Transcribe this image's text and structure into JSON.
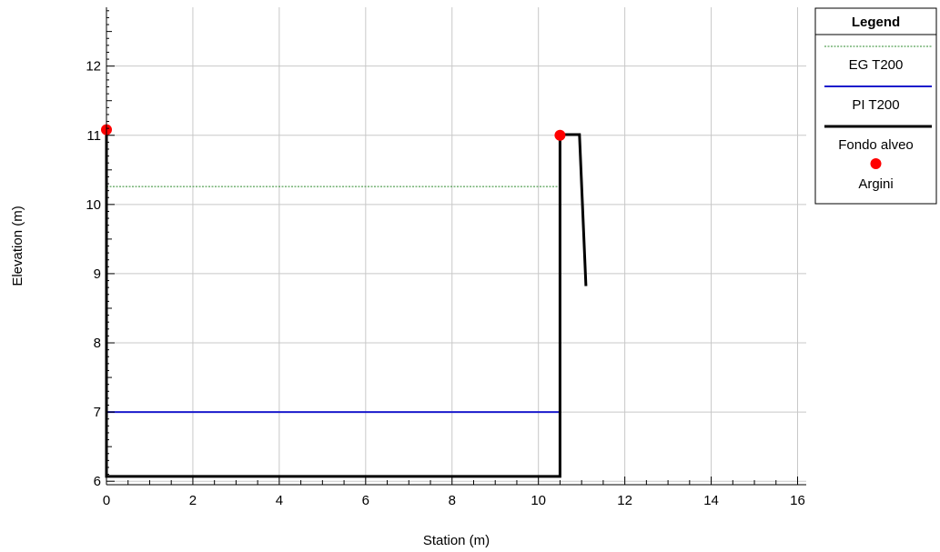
{
  "chart_data": {
    "type": "line",
    "xlabel": "Station (m)",
    "ylabel": "Elevation (m)",
    "xlim": [
      0,
      16.2
    ],
    "ylim": [
      5.95,
      12.85
    ],
    "x_ticks": [
      0,
      2,
      4,
      6,
      8,
      10,
      12,
      14,
      16
    ],
    "y_ticks": [
      6,
      7,
      8,
      9,
      10,
      11,
      12
    ],
    "grid": true,
    "legend": {
      "title": "Legend",
      "placement": "top-right outside",
      "entries": [
        "EG T200",
        "PI T200",
        "Fondo alveo",
        "Argini"
      ]
    },
    "series": [
      {
        "name": "EG T200",
        "style": "dotted",
        "color": "#2e8b2e",
        "x": [
          0,
          10.5
        ],
        "y": [
          10.26,
          10.26
        ]
      },
      {
        "name": "PI T200",
        "style": "solid",
        "color": "#1a1acc",
        "x": [
          0,
          10.5
        ],
        "y": [
          7.0,
          7.0
        ]
      },
      {
        "name": "Fondo alveo",
        "style": "solid",
        "color": "#000000",
        "x": [
          0,
          0,
          10.5,
          10.5,
          10.6,
          10.95,
          11.1
        ],
        "y": [
          11.05,
          6.07,
          6.07,
          11.0,
          11.01,
          11.01,
          8.82
        ]
      },
      {
        "name": "Argini",
        "style": "markers",
        "color": "#ff0000",
        "x": [
          0,
          10.5
        ],
        "y": [
          11.08,
          11.0
        ]
      }
    ]
  }
}
